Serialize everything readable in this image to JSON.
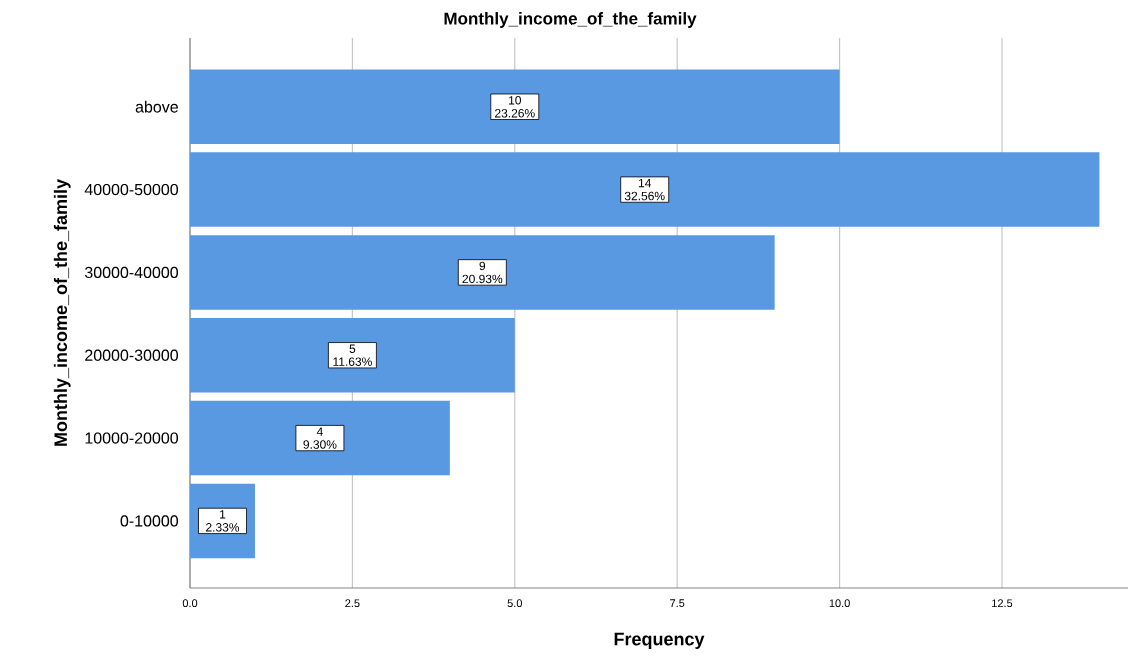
{
  "chart_data": {
    "type": "bar",
    "orientation": "horizontal",
    "title": "Monthly_income_of_the_family",
    "xlabel": "Frequency",
    "ylabel": "Monthly_income_of_the_family",
    "categories": [
      "above",
      "40000-50000",
      "30000-40000",
      "20000-30000",
      "10000-20000",
      "0-10000"
    ],
    "values": [
      10,
      14,
      9,
      5,
      4,
      1
    ],
    "value_labels": [
      "10 23.26%",
      "14 32.56%",
      "9 20.93%",
      "5 11.63%",
      "4 9.30%",
      "1 2.33%"
    ],
    "color": "#5899e2",
    "xlim": [
      0,
      14.44
    ],
    "xticks": [
      {
        "value": 0,
        "label": "0.0"
      },
      {
        "value": 2.5,
        "label": "2.5"
      },
      {
        "value": 5,
        "label": "5.0"
      },
      {
        "value": 7.5,
        "label": "7.5"
      },
      {
        "value": 10,
        "label": "10.0"
      },
      {
        "value": 12.5,
        "label": "12.5"
      }
    ],
    "grid": "x"
  }
}
